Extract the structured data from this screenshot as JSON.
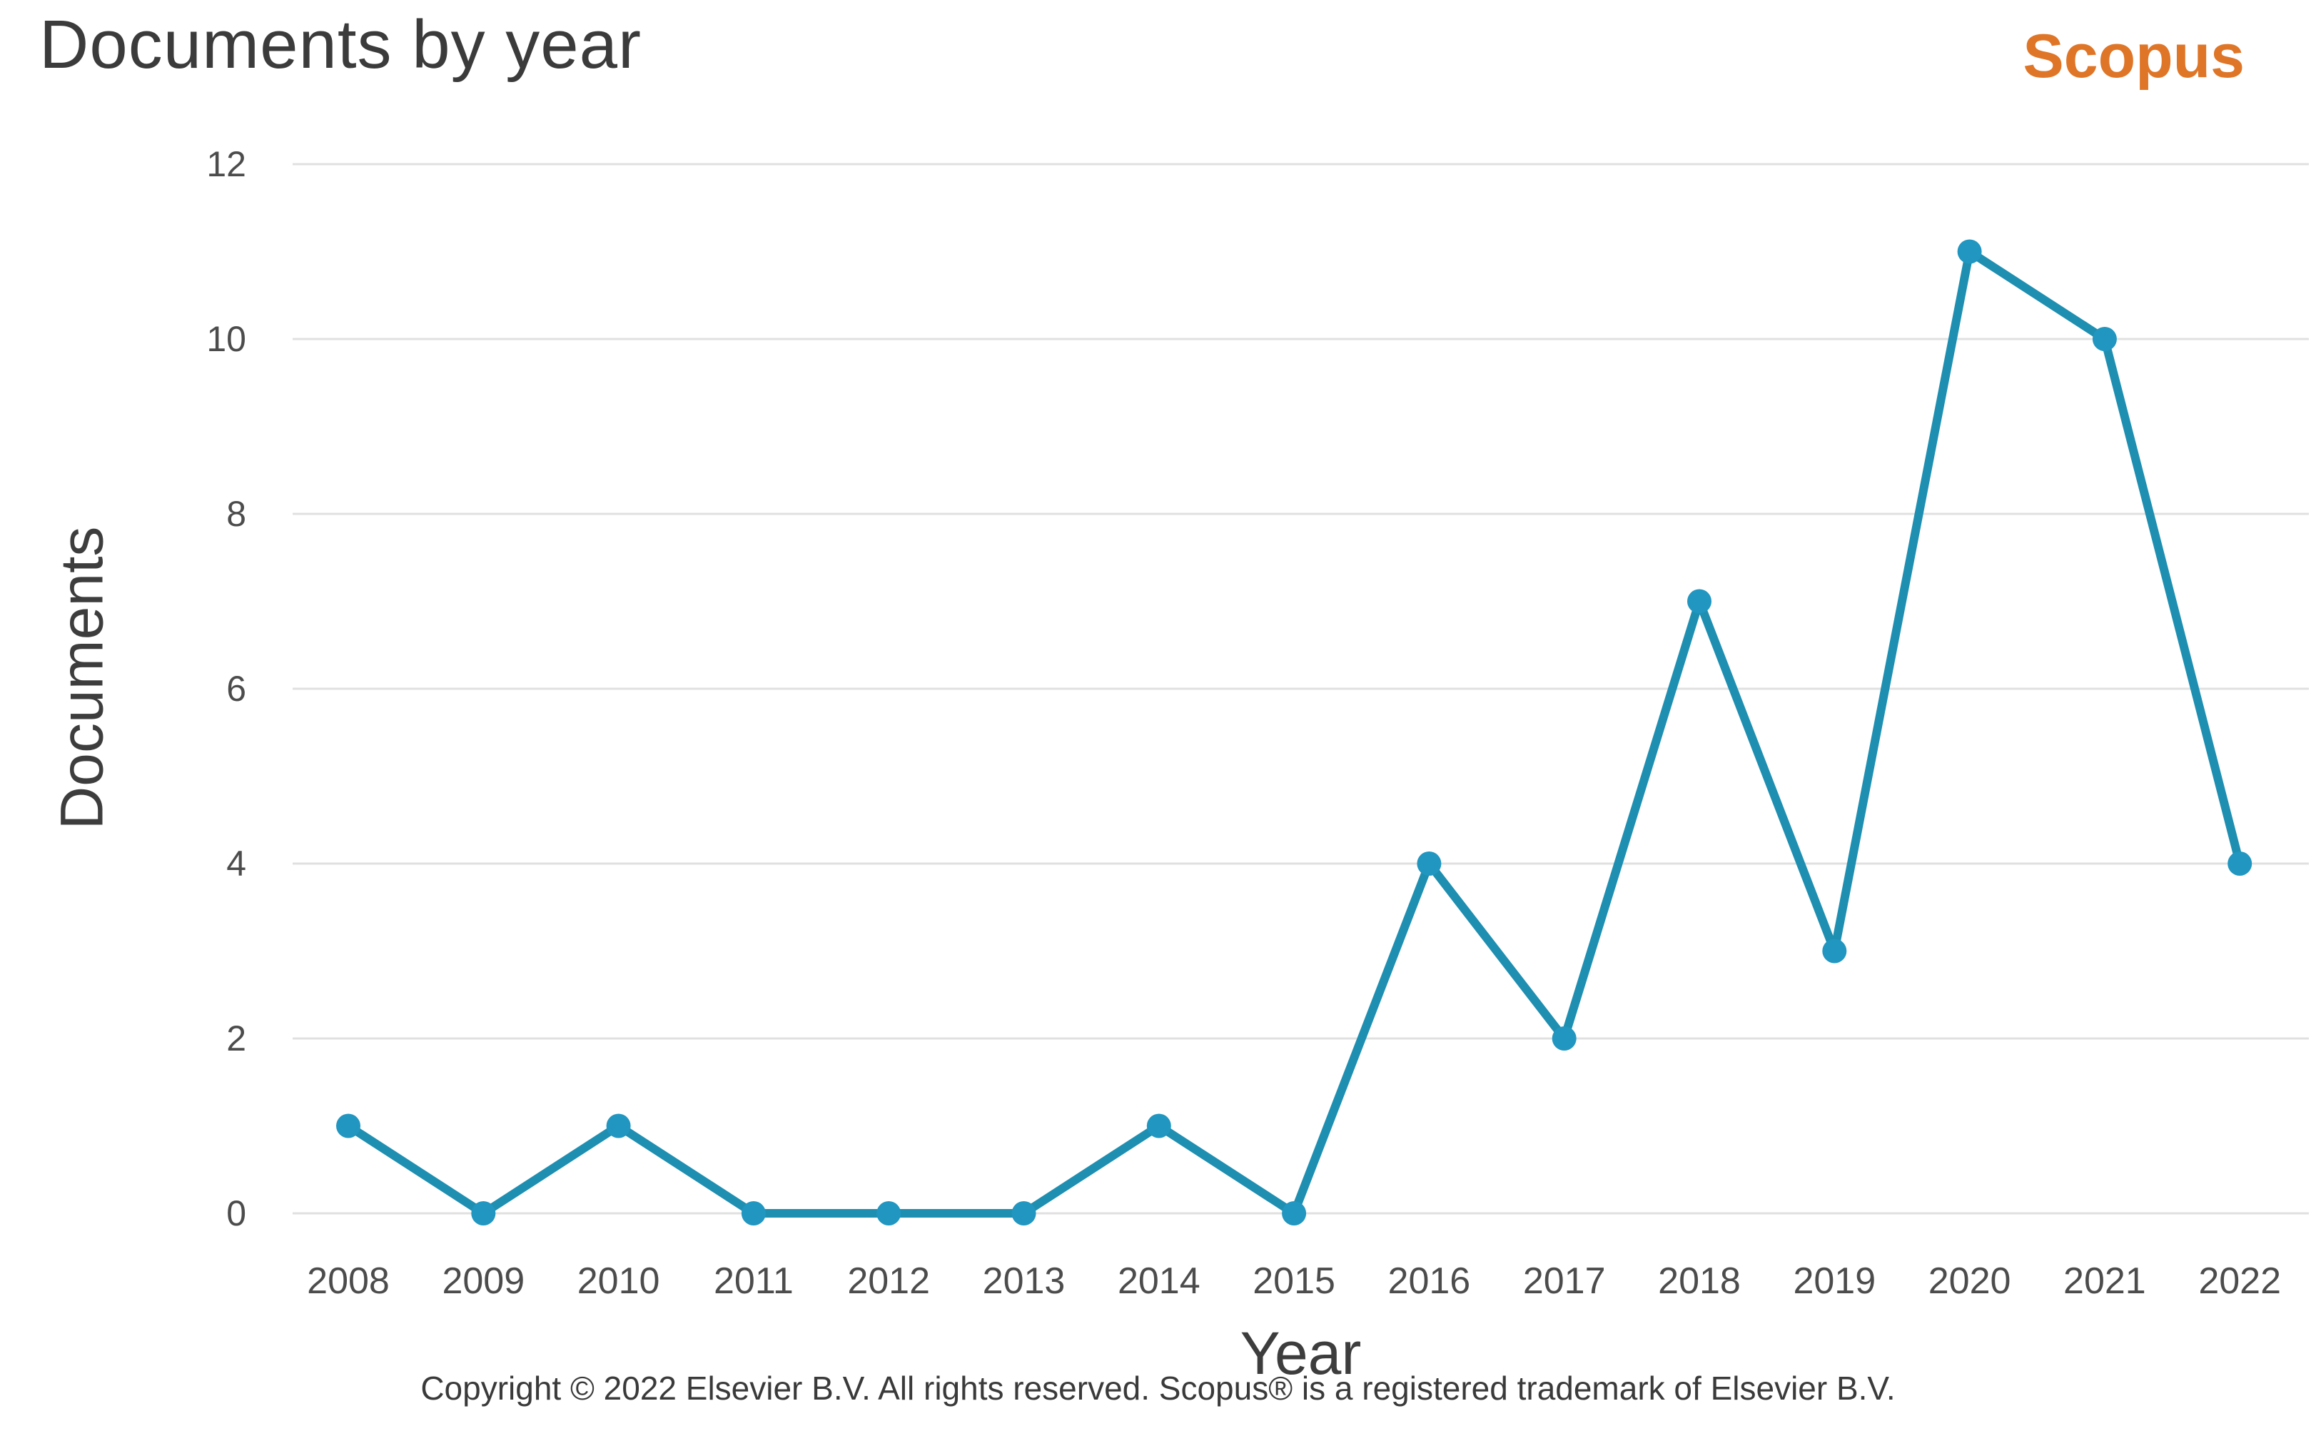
{
  "header": {
    "title": "Documents by year",
    "brand": "Scopus",
    "brand_color": "#df7527",
    "title_color": "#3b3b3b"
  },
  "chart_data": {
    "type": "line",
    "title": "Documents by year",
    "xlabel": "Year",
    "ylabel": "Documents",
    "categories": [
      "2008",
      "2009",
      "2010",
      "2011",
      "2012",
      "2013",
      "2014",
      "2015",
      "2016",
      "2017",
      "2018",
      "2019",
      "2020",
      "2021",
      "2022"
    ],
    "values": [
      1,
      0,
      1,
      0,
      0,
      0,
      1,
      0,
      4,
      2,
      7,
      3,
      11,
      10,
      4
    ],
    "ylim": [
      0,
      12
    ],
    "yticks": [
      0,
      2,
      4,
      6,
      8,
      10,
      12
    ],
    "grid": "horizontal",
    "legend": "none",
    "line_color": "#1e8fb1",
    "point_color": "#2096c0",
    "grid_color": "#e0e0e0",
    "tick_label_color": "#4c4c4c"
  },
  "footer": {
    "copyright": "Copyright © 2022 Elsevier B.V. All rights reserved. Scopus® is a registered trademark of Elsevier B.V."
  }
}
